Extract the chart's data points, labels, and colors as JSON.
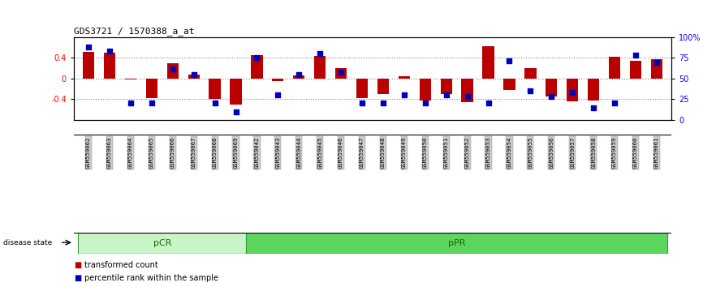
{
  "title": "GDS3721 / 1570388_a_at",
  "samples": [
    "GSM559062",
    "GSM559063",
    "GSM559064",
    "GSM559065",
    "GSM559066",
    "GSM559067",
    "GSM559068",
    "GSM559069",
    "GSM559042",
    "GSM559043",
    "GSM559044",
    "GSM559045",
    "GSM559046",
    "GSM559047",
    "GSM559048",
    "GSM559049",
    "GSM559050",
    "GSM559051",
    "GSM559052",
    "GSM559053",
    "GSM559054",
    "GSM559055",
    "GSM559056",
    "GSM559057",
    "GSM559058",
    "GSM559059",
    "GSM559060",
    "GSM559061"
  ],
  "bar_values": [
    0.52,
    0.5,
    -0.02,
    -0.38,
    0.3,
    0.08,
    -0.4,
    -0.5,
    0.46,
    -0.05,
    0.06,
    0.44,
    0.2,
    -0.38,
    -0.3,
    0.05,
    -0.42,
    -0.3,
    -0.46,
    0.62,
    -0.22,
    0.2,
    -0.35,
    -0.44,
    -0.42,
    0.42,
    0.35,
    0.38
  ],
  "dot_values": [
    88,
    83,
    20,
    20,
    62,
    55,
    20,
    10,
    75,
    30,
    55,
    80,
    58,
    20,
    20,
    30,
    20,
    30,
    28,
    20,
    72,
    35,
    28,
    33,
    15,
    20,
    78,
    70
  ],
  "pCR_count": 8,
  "pPR_count": 20,
  "bar_color": "#BB0000",
  "dot_color": "#0000BB",
  "ylim_left": [
    -0.8,
    0.8
  ],
  "ylim_right": [
    0,
    100
  ],
  "y_ticks_left": [
    -0.4,
    0.0,
    0.4
  ],
  "y_tick_labels_left": [
    "-0.4",
    "0",
    "0.4"
  ],
  "y_ticks_right": [
    0,
    25,
    50,
    75,
    100
  ],
  "y_tick_labels_right": [
    "0",
    "25",
    "50",
    "75",
    "100%"
  ],
  "dotted_lines": [
    -0.4,
    0.0,
    0.4
  ],
  "legend_bar_label": "transformed count",
  "legend_dot_label": "percentile rank within the sample",
  "pCR_color": "#c8f5c8",
  "pPR_color": "#5cd65c",
  "disease_state_label": "disease state",
  "pCR_label": "pCR",
  "pPR_label": "pPR",
  "bar_width": 0.55,
  "xtick_box_color": "#cccccc",
  "xtick_box_edge": "#888888"
}
